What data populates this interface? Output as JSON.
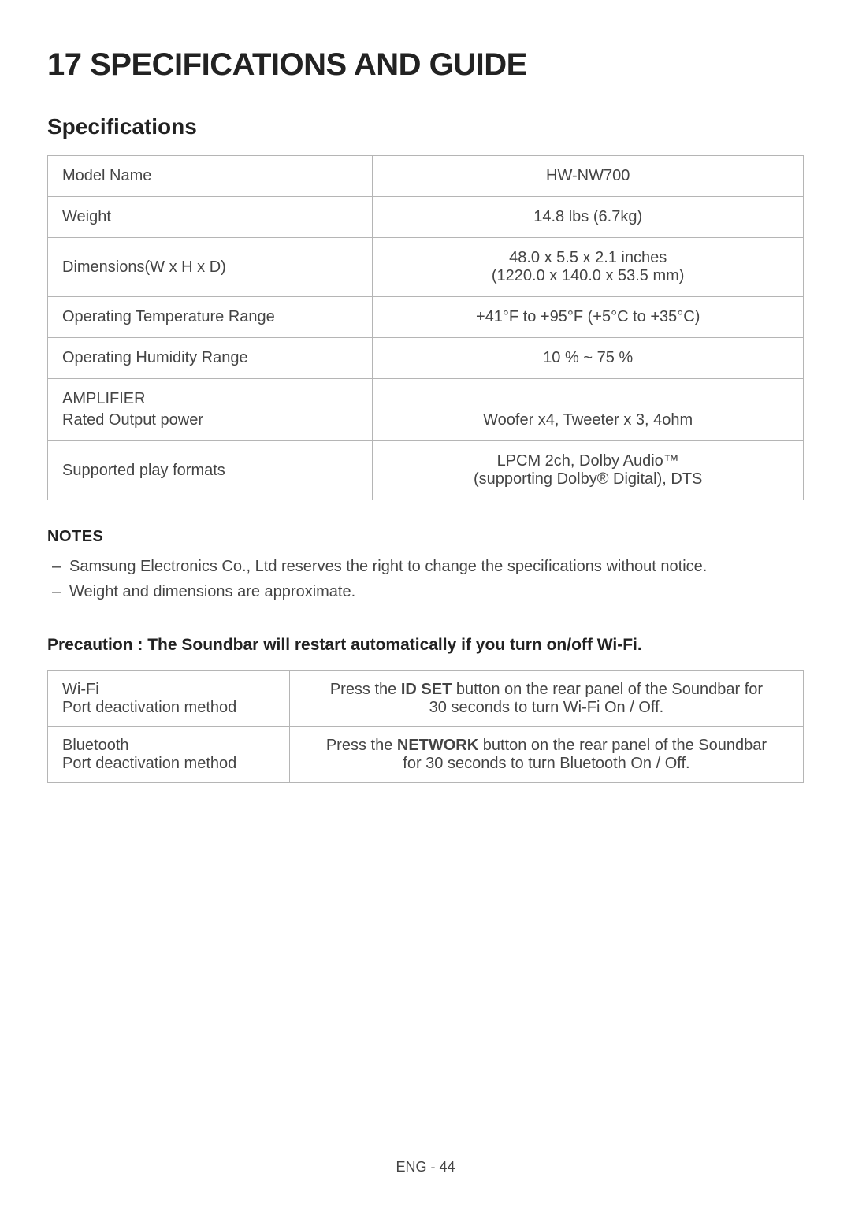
{
  "heading": "17    SPECIFICATIONS AND GUIDE",
  "subheading": "Specifications",
  "spec_rows": [
    {
      "label": "Model Name",
      "value": "HW-NW700"
    },
    {
      "label": "Weight",
      "value": "14.8 lbs (6.7kg)"
    },
    {
      "label": "Dimensions(W x H x D)",
      "value_line1": "48.0 x 5.5 x 2.1 inches",
      "value_line2": "(1220.0 x 140.0 x 53.5 mm)"
    },
    {
      "label": "Operating Temperature Range",
      "value": "+41°F to +95°F (+5°C to +35°C)"
    },
    {
      "label": "Operating Humidity Range",
      "value": "10 % ~ 75 %"
    },
    {
      "label_line1": "AMPLIFIER",
      "label_line2": "Rated Output power",
      "value": "Woofer x4, Tweeter x 3, 4ohm"
    },
    {
      "label": "Supported play formats",
      "value_line1": "LPCM 2ch, Dolby Audio™",
      "value_line2": "(supporting Dolby® Digital), DTS"
    }
  ],
  "notes_heading": "NOTES",
  "notes": [
    "Samsung Electronics Co., Ltd reserves the right to change the specifications without notice.",
    "Weight and dimensions are approximate."
  ],
  "precaution_heading": "Precaution : The Soundbar will restart automatically if you turn on/off Wi-Fi.",
  "precaution_rows": [
    {
      "label_line1": "Wi-Fi",
      "label_line2": "Port deactivation method",
      "value_pre": "Press the ",
      "value_bold": "ID SET",
      "value_post1": " button on the rear panel of the Soundbar for",
      "value_post2": "30 seconds to turn Wi-Fi On / Off."
    },
    {
      "label_line1": "Bluetooth",
      "label_line2": "Port deactivation method",
      "value_pre": "Press the ",
      "value_bold": "NETWORK",
      "value_post1": " button on the rear panel of the Soundbar",
      "value_post2": "for 30 seconds to turn Bluetooth On / Off."
    }
  ],
  "footer": "ENG - 44"
}
